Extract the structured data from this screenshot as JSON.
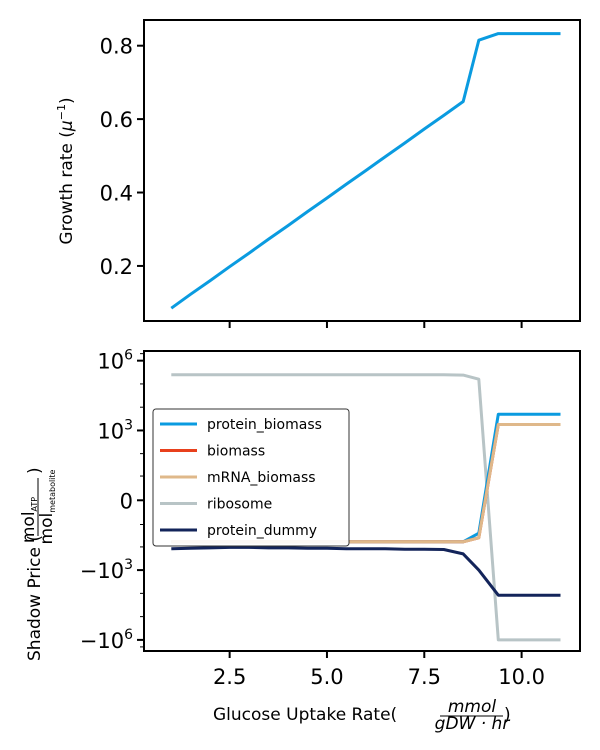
{
  "chart_data": [
    {
      "type": "line",
      "ylabel": "Growth rate (μ⁻¹)",
      "ylabel_main": "Growth rate (",
      "ylabel_mu": "μ",
      "ylabel_exp": "−1",
      "ylabel_close": ")",
      "xlim": [
        0.3,
        11.5
      ],
      "ylim": [
        0.05,
        0.87
      ],
      "yticks": [
        0.2,
        0.4,
        0.6,
        0.8
      ],
      "ytick_labels": [
        "0.2",
        "0.4",
        "0.6",
        "0.8"
      ],
      "xticks": [
        2.5,
        5.0,
        7.5,
        10.0
      ],
      "series": [
        {
          "color": "#0a9be0",
          "x": [
            1.0,
            1.5,
            2.0,
            2.5,
            3.0,
            3.5,
            4.0,
            4.5,
            5.0,
            5.5,
            6.0,
            6.5,
            7.0,
            7.5,
            8.0,
            8.5,
            8.9,
            9.4,
            10.0,
            10.5,
            11.0
          ],
          "y": [
            0.085,
            0.123,
            0.16,
            0.198,
            0.235,
            0.273,
            0.31,
            0.348,
            0.385,
            0.423,
            0.46,
            0.498,
            0.535,
            0.573,
            0.61,
            0.648,
            0.815,
            0.833,
            0.833,
            0.833,
            0.833
          ]
        }
      ]
    },
    {
      "type": "line",
      "ylabel_main": "Shadow Price (",
      "ylabel_num": "mol",
      "ylabel_num_sub": "ATP",
      "ylabel_den": "mol",
      "ylabel_den_sub": "metabolite",
      "ylabel_close": ")",
      "xlabel_main": "Glucose Uptake Rate(",
      "xlabel_num": "mmol",
      "xlabel_den": "gDW · hr",
      "xlabel_close": ")",
      "yscale": "symlog",
      "xlim": [
        0.3,
        11.5
      ],
      "yticks": [
        {
          "base": "10",
          "exp": "6",
          "neg": false,
          "value": 1000000
        },
        {
          "base": "10",
          "exp": "3",
          "neg": false,
          "value": 1000
        },
        {
          "base": "0",
          "exp": "",
          "neg": false,
          "value": 0
        },
        {
          "base": "−10",
          "exp": "3",
          "neg": true,
          "value": -1000
        },
        {
          "base": "−10",
          "exp": "6",
          "neg": true,
          "value": -1000000
        }
      ],
      "xticks": [
        2.5,
        5.0,
        7.5,
        10.0
      ],
      "xtick_labels": [
        "2.5",
        "5.0",
        "7.5",
        "10.0"
      ],
      "legend": {
        "placement": "center-left"
      },
      "series": [
        {
          "name": "protein_biomass",
          "color": "#0a9be0",
          "x": [
            1.0,
            1.5,
            2.0,
            2.5,
            3.0,
            3.5,
            4.0,
            4.5,
            5.0,
            5.5,
            6.0,
            6.5,
            7.0,
            7.5,
            8.0,
            8.5,
            8.9,
            9.4,
            10.0,
            10.5,
            11.0
          ],
          "y": [
            -60,
            -60,
            -60,
            -60,
            -60,
            -60,
            -60,
            -60,
            -60,
            -60,
            -60,
            -60,
            -60,
            -60,
            -60,
            -60,
            -25,
            5000,
            5000,
            5000,
            5000
          ]
        },
        {
          "name": "biomass",
          "color": "#e8401c",
          "x": [
            1.0,
            1.5,
            2.0,
            2.5,
            3.0,
            3.5,
            4.0,
            4.5,
            5.0,
            5.5,
            6.0,
            6.5,
            7.0,
            7.5,
            8.0,
            8.5,
            8.9,
            9.4,
            10.0,
            10.5,
            11.0
          ],
          "y": [
            -60,
            -60,
            -60,
            -60,
            -60,
            -60,
            -60,
            -60,
            -60,
            -60,
            -60,
            -60,
            -60,
            -60,
            -60,
            -60,
            -40,
            1800,
            1800,
            1800,
            1800
          ]
        },
        {
          "name": "mRNA_biomass",
          "color": "#dfb88a",
          "x": [
            1.0,
            1.5,
            2.0,
            2.5,
            3.0,
            3.5,
            4.0,
            4.5,
            5.0,
            5.5,
            6.0,
            6.5,
            7.0,
            7.5,
            8.0,
            8.5,
            8.9,
            9.4,
            10.0,
            10.5,
            11.0
          ],
          "y": [
            -60,
            -60,
            -60,
            -60,
            -60,
            -60,
            -60,
            -60,
            -60,
            -60,
            -60,
            -60,
            -60,
            -60,
            -60,
            -60,
            -40,
            1800,
            1800,
            1800,
            1800
          ]
        },
        {
          "name": "ribosome",
          "color": "#b8c4c6",
          "x": [
            1.0,
            1.5,
            2.0,
            2.5,
            3.0,
            3.5,
            4.0,
            4.5,
            5.0,
            5.5,
            6.0,
            6.5,
            7.0,
            7.5,
            8.0,
            8.5,
            8.9,
            9.4,
            10.0,
            10.5,
            11.0
          ],
          "y": [
            250000,
            250000,
            250000,
            250000,
            250000,
            250000,
            250000,
            250000,
            250000,
            250000,
            250000,
            250000,
            250000,
            250000,
            250000,
            240000,
            160000,
            -1000000,
            -1000000,
            -1000000,
            -1000000
          ]
        },
        {
          "name": "protein_dummy",
          "color": "#13245a",
          "x": [
            1.0,
            1.5,
            2.0,
            2.5,
            3.0,
            3.5,
            4.0,
            4.5,
            5.0,
            5.5,
            6.0,
            6.5,
            7.0,
            7.5,
            8.0,
            8.5,
            8.9,
            9.4,
            10.0,
            10.5,
            11.0
          ],
          "y": [
            -120,
            -115,
            -110,
            -105,
            -105,
            -110,
            -110,
            -115,
            -115,
            -120,
            -120,
            -120,
            -125,
            -125,
            -130,
            -200,
            -1000,
            -12000,
            -12000,
            -12000,
            -12000
          ]
        }
      ]
    }
  ]
}
